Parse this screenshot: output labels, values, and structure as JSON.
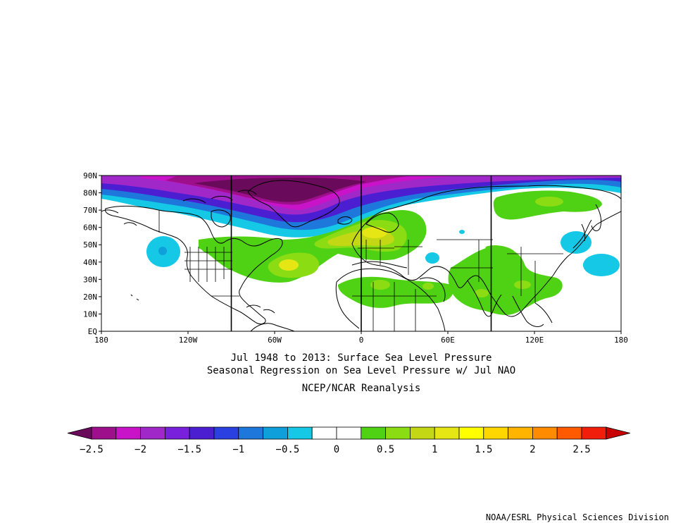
{
  "titles": {
    "line1": "Jul 1948 to 2013: Surface Sea Level Pressure",
    "line2": "Seasonal Regression on Sea Level Pressure  w/ Jul NAO",
    "line3": "NCEP/NCAR Reanalysis"
  },
  "credit": "NOAA/ESRL Physical Sciences Division",
  "map": {
    "projection": "cylindrical equidistant",
    "lon_range": [
      -180,
      180
    ],
    "lat_range": [
      0,
      90
    ],
    "lat_ticks": [
      {
        "value": 90,
        "label": "90N"
      },
      {
        "value": 80,
        "label": "80N"
      },
      {
        "value": 70,
        "label": "70N"
      },
      {
        "value": 60,
        "label": "60N"
      },
      {
        "value": 50,
        "label": "50N"
      },
      {
        "value": 40,
        "label": "40N"
      },
      {
        "value": 30,
        "label": "30N"
      },
      {
        "value": 20,
        "label": "20N"
      },
      {
        "value": 10,
        "label": "10N"
      },
      {
        "value": 0,
        "label": "EQ"
      }
    ],
    "lon_ticks": [
      {
        "value": -180,
        "label": "180"
      },
      {
        "value": -120,
        "label": "120W"
      },
      {
        "value": -60,
        "label": "60W"
      },
      {
        "value": 0,
        "label": "0"
      },
      {
        "value": 60,
        "label": "60E"
      },
      {
        "value": 120,
        "label": "120E"
      },
      {
        "value": 180,
        "label": "180"
      }
    ],
    "vertical_lines": [
      -90,
      0,
      90
    ]
  },
  "colorbar": {
    "colors": [
      "#6a0a5a",
      "#9e0f8c",
      "#c813c8",
      "#a028c8",
      "#7820dc",
      "#4b1ed2",
      "#2a40e0",
      "#1e78dc",
      "#0fa0dc",
      "#14c8e6",
      "#ffffff",
      "#ffffff",
      "#50d214",
      "#8cdc14",
      "#c3d714",
      "#e6e614",
      "#ffff00",
      "#ffd700",
      "#ffb400",
      "#ff8c00",
      "#ff5a00",
      "#f01e0a",
      "#c80000"
    ],
    "labels": [
      "−2.5",
      "−2",
      "−1.5",
      "−1",
      "−0.5",
      "0",
      "0.5",
      "1",
      "1.5",
      "2",
      "2.5"
    ]
  }
}
